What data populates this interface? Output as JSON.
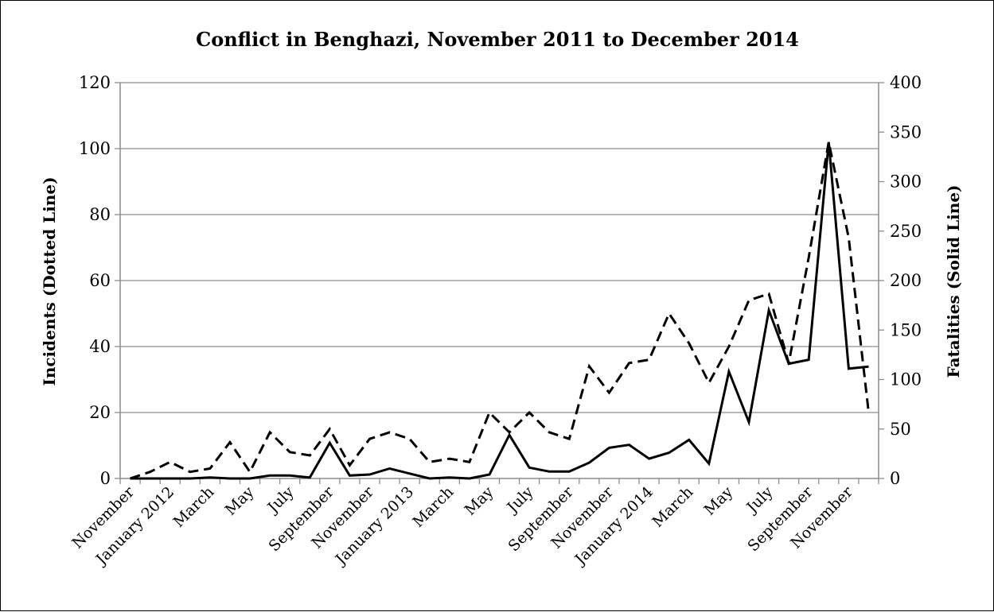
{
  "chart_data": {
    "type": "line",
    "title": "Conflict in Benghazi, November 2011 to December 2014",
    "ylabel_left": "Incidents (Dotted Line)",
    "ylabel_right": "Fatalities (Solid Line)",
    "ylim_left": [
      0,
      120
    ],
    "ylim_right": [
      0,
      400
    ],
    "yticks_left": [
      "0",
      "20",
      "40",
      "60",
      "80",
      "100",
      "120"
    ],
    "yticks_right": [
      "0",
      "50",
      "100",
      "150",
      "200",
      "250",
      "300",
      "350",
      "400"
    ],
    "grid": true,
    "legend": "none",
    "x_count": 38,
    "x_tick_labels": [
      {
        "index": 0,
        "label": "November"
      },
      {
        "index": 2,
        "label": "January 2012"
      },
      {
        "index": 4,
        "label": "March"
      },
      {
        "index": 6,
        "label": "May"
      },
      {
        "index": 8,
        "label": "July"
      },
      {
        "index": 10,
        "label": "September"
      },
      {
        "index": 12,
        "label": "November"
      },
      {
        "index": 14,
        "label": "January 2013"
      },
      {
        "index": 16,
        "label": "March"
      },
      {
        "index": 18,
        "label": "May"
      },
      {
        "index": 20,
        "label": "July"
      },
      {
        "index": 22,
        "label": "September"
      },
      {
        "index": 24,
        "label": "November"
      },
      {
        "index": 26,
        "label": "January 2014"
      },
      {
        "index": 28,
        "label": "March"
      },
      {
        "index": 30,
        "label": "May"
      },
      {
        "index": 32,
        "label": "July"
      },
      {
        "index": 34,
        "label": "September"
      },
      {
        "index": 36,
        "label": "November"
      }
    ],
    "series": [
      {
        "axis": "left",
        "style": "dashed",
        "values": [
          0,
          2,
          5,
          2,
          3,
          11,
          2,
          14,
          8,
          7,
          15,
          4,
          12,
          14,
          12,
          5,
          6,
          5,
          20,
          14,
          20,
          14,
          12,
          34,
          26,
          35,
          36,
          50,
          41,
          29,
          40,
          54,
          56,
          35,
          67,
          102,
          73,
          20
        ]
      },
      {
        "axis": "right",
        "style": "solid",
        "values": [
          0,
          0,
          0,
          0,
          1,
          0,
          0,
          3,
          3,
          1,
          36,
          3,
          4,
          10,
          5,
          0,
          1,
          0,
          4,
          44,
          11,
          7,
          7,
          16,
          31,
          34,
          20,
          26,
          39,
          15,
          108,
          57,
          170,
          116,
          120,
          340,
          111,
          113
        ]
      }
    ]
  }
}
